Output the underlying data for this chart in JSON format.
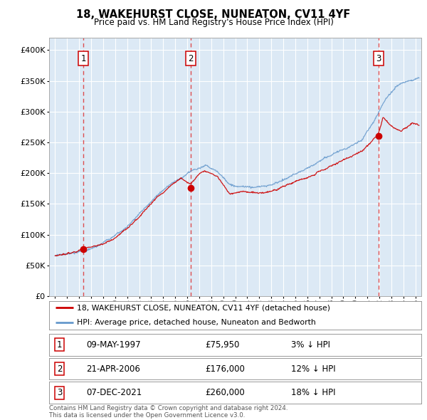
{
  "title1": "18, WAKEHURST CLOSE, NUNEATON, CV11 4YF",
  "title2": "Price paid vs. HM Land Registry's House Price Index (HPI)",
  "ylim": [
    0,
    420000
  ],
  "yticks": [
    0,
    50000,
    100000,
    150000,
    200000,
    250000,
    300000,
    350000,
    400000
  ],
  "ytick_labels": [
    "£0",
    "£50K",
    "£100K",
    "£150K",
    "£200K",
    "£250K",
    "£300K",
    "£350K",
    "£400K"
  ],
  "xlim_start": 1994.5,
  "xlim_end": 2025.5,
  "background_color": "#ffffff",
  "plot_bg_color": "#dce9f5",
  "grid_color": "#ffffff",
  "sale_dates": [
    1997.36,
    2006.31,
    2021.92
  ],
  "sale_prices": [
    75950,
    176000,
    260000
  ],
  "sale_labels": [
    "1",
    "2",
    "3"
  ],
  "legend_line1": "18, WAKEHURST CLOSE, NUNEATON, CV11 4YF (detached house)",
  "legend_line2": "HPI: Average price, detached house, Nuneaton and Bedworth",
  "table_rows": [
    {
      "num": "1",
      "date": "09-MAY-1997",
      "price": "£75,950",
      "hpi": "3% ↓ HPI"
    },
    {
      "num": "2",
      "date": "21-APR-2006",
      "price": "£176,000",
      "hpi": "12% ↓ HPI"
    },
    {
      "num": "3",
      "date": "07-DEC-2021",
      "price": "£260,000",
      "hpi": "18% ↓ HPI"
    }
  ],
  "footer": "Contains HM Land Registry data © Crown copyright and database right 2024.\nThis data is licensed under the Open Government Licence v3.0.",
  "red_line_color": "#cc0000",
  "blue_line_color": "#6699cc",
  "dot_color": "#cc0000",
  "dashed_color": "#dd3333"
}
